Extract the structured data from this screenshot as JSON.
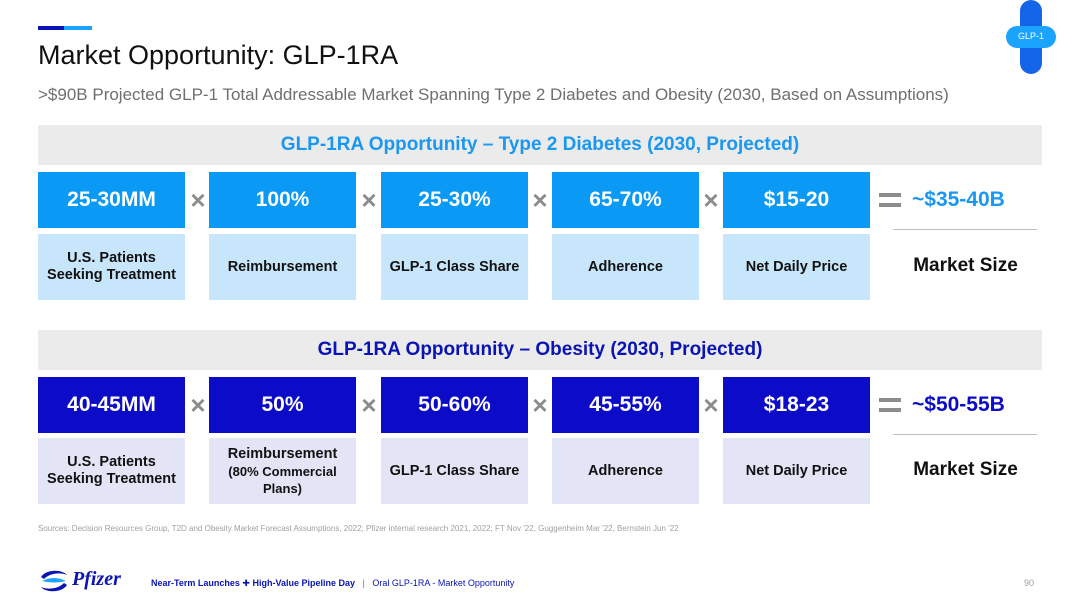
{
  "title": "Market Opportunity: GLP-1RA",
  "subtitle": ">$90B Projected GLP-1 Total Addressable Market Spanning Type 2 Diabetes and Obesity (2030, Based on Assumptions)",
  "badge": "GLP-1",
  "colors": {
    "light_blue": "#0a99f5",
    "dark_blue": "#0c0cc8",
    "header_bg": "#ebebeb",
    "pfizer_blue": "#0a14b4"
  },
  "sections": [
    {
      "header": "GLP-1RA Opportunity – Type 2 Diabetes (2030, Projected)",
      "values": [
        "25-30MM",
        "100%",
        "25-30%",
        "65-70%",
        "$15-20"
      ],
      "labels": [
        "U.S. Patients Seeking Treatment",
        "Reimbursement",
        "GLP-1 Class Share",
        "Adherence",
        "Net Daily Price"
      ],
      "result": "~$35-40B",
      "result_label": "Market Size"
    },
    {
      "header": "GLP-1RA Opportunity – Obesity (2030, Projected)",
      "values": [
        "40-45MM",
        "50%",
        "50-60%",
        "45-55%",
        "$18-23"
      ],
      "labels": [
        "U.S. Patients Seeking Treatment",
        "Reimbursement",
        "GLP-1 Class Share",
        "Adherence",
        "Net Daily Price"
      ],
      "label_sub": "(80% Commercial Plans)",
      "result": "~$50-55B",
      "result_label": "Market Size"
    }
  ],
  "operators": {
    "times": "×",
    "equals": "="
  },
  "sources": "Sources: Decision Resources Group, T2D and Obesity Market Forecast Assumptions, 2022;  Pfizer internal research 2021, 2022;  FT Nov '22, Guggenheim Mar '22, Bernstein Jun '22",
  "footer": {
    "logo_text": "Pfizer",
    "event_part1": "Near-Term Launches",
    "event_part2": "High-Value Pipeline Day",
    "separator": "|",
    "section": "Oral GLP-1RA - Market Opportunity",
    "page": "90"
  }
}
